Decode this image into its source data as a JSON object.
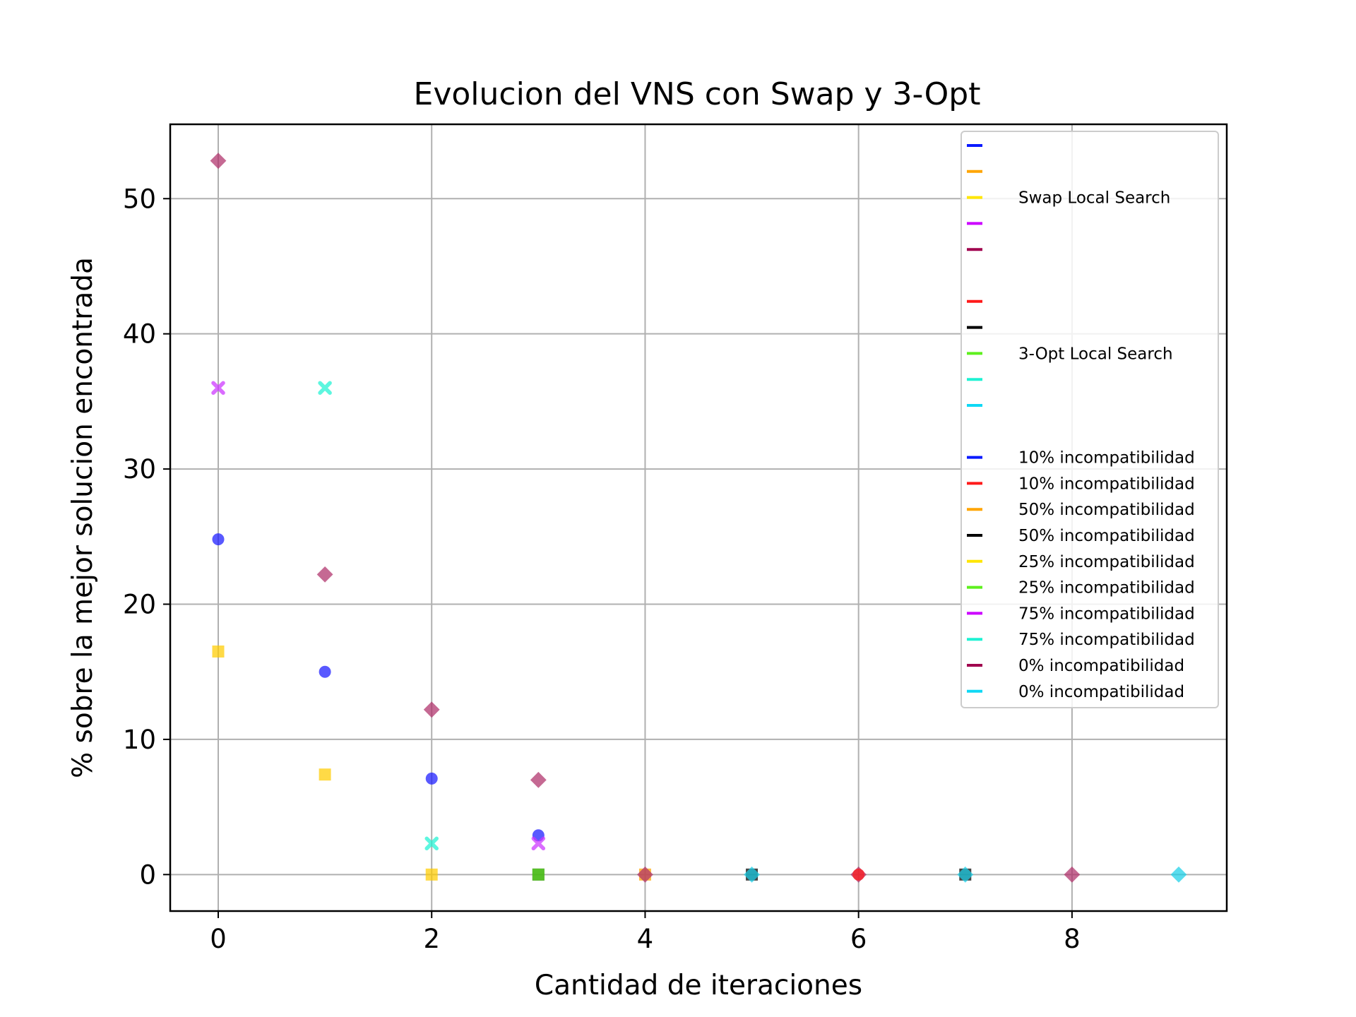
{
  "chart_data": {
    "type": "scatter",
    "title": "Evolucion del VNS con Swap y 3-Opt",
    "xlabel": "Cantidad de iteraciones",
    "ylabel": "% sobre la mejor solucion encontrada",
    "xlim": [
      -0.45,
      9.45
    ],
    "ylim": [
      -2.7,
      55.5
    ],
    "xticks": [
      0,
      2,
      4,
      6,
      8
    ],
    "yticks": [
      0,
      10,
      20,
      30,
      40,
      50
    ],
    "grid": true,
    "legend_position": "upper-right",
    "legend": [
      {
        "label": "",
        "color": "#0a1aff"
      },
      {
        "label": "",
        "color": "#ffa500"
      },
      {
        "label": "Swap Local Search",
        "color": "#ffe600"
      },
      {
        "label": "",
        "color": "#cc00ff"
      },
      {
        "label": "",
        "color": "#a0004e"
      },
      {
        "label": "",
        "color": null
      },
      {
        "label": "",
        "color": "#ff1a1a"
      },
      {
        "label": "",
        "color": "#000000"
      },
      {
        "label": "3-Opt Local Search",
        "color": "#5ef01e"
      },
      {
        "label": "",
        "color": "#1ef2d3"
      },
      {
        "label": "",
        "color": "#0fd8f5"
      },
      {
        "label": "",
        "color": null
      },
      {
        "label": "10% incompatibilidad",
        "color": "#0a1aff"
      },
      {
        "label": "10% incompatibilidad",
        "color": "#ff1a1a"
      },
      {
        "label": "50% incompatibilidad",
        "color": "#ffa500"
      },
      {
        "label": "50% incompatibilidad",
        "color": "#000000"
      },
      {
        "label": "25% incompatibilidad",
        "color": "#ffe600"
      },
      {
        "label": "25% incompatibilidad",
        "color": "#5ef01e"
      },
      {
        "label": "75% incompatibilidad",
        "color": "#cc00ff"
      },
      {
        "label": "75% incompatibilidad",
        "color": "#1ef2d3"
      },
      {
        "label": "0% incompatibilidad",
        "color": "#a0004e"
      },
      {
        "label": "0% incompatibilidad",
        "color": "#0fd8f5"
      }
    ],
    "series": [
      {
        "color": "#1a1aff",
        "marker": "circle",
        "x": [
          0,
          1,
          2,
          3
        ],
        "y": [
          24.8,
          15.0,
          7.1,
          2.9
        ]
      },
      {
        "color": "#ffa500",
        "marker": "square",
        "x": [
          4
        ],
        "y": [
          0
        ]
      },
      {
        "color": "#ffcc00",
        "marker": "square",
        "x": [
          0,
          1,
          2
        ],
        "y": [
          16.5,
          7.4,
          0
        ]
      },
      {
        "color": "#cc33ff",
        "marker": "x",
        "x": [
          0,
          3
        ],
        "y": [
          36.0,
          2.3
        ]
      },
      {
        "color": "#b0306a",
        "marker": "diamond",
        "x": [
          0,
          1,
          2,
          3,
          4,
          6,
          8
        ],
        "y": [
          52.8,
          22.2,
          12.2,
          7.0,
          0,
          0,
          0
        ]
      },
      {
        "color": "#ff1a1a",
        "marker": "circle",
        "x": [
          6
        ],
        "y": [
          0
        ]
      },
      {
        "color": "#000000",
        "marker": "square",
        "x": [
          3,
          5,
          7
        ],
        "y": [
          0,
          0,
          0
        ]
      },
      {
        "color": "#5ef01e",
        "marker": "square",
        "x": [
          3
        ],
        "y": [
          0
        ]
      },
      {
        "color": "#1ef2d3",
        "marker": "x",
        "x": [
          1,
          2
        ],
        "y": [
          36.0,
          2.3
        ]
      },
      {
        "color": "#1ad0e8",
        "marker": "diamond",
        "x": [
          5,
          7,
          9
        ],
        "y": [
          0,
          0,
          0
        ]
      }
    ]
  }
}
